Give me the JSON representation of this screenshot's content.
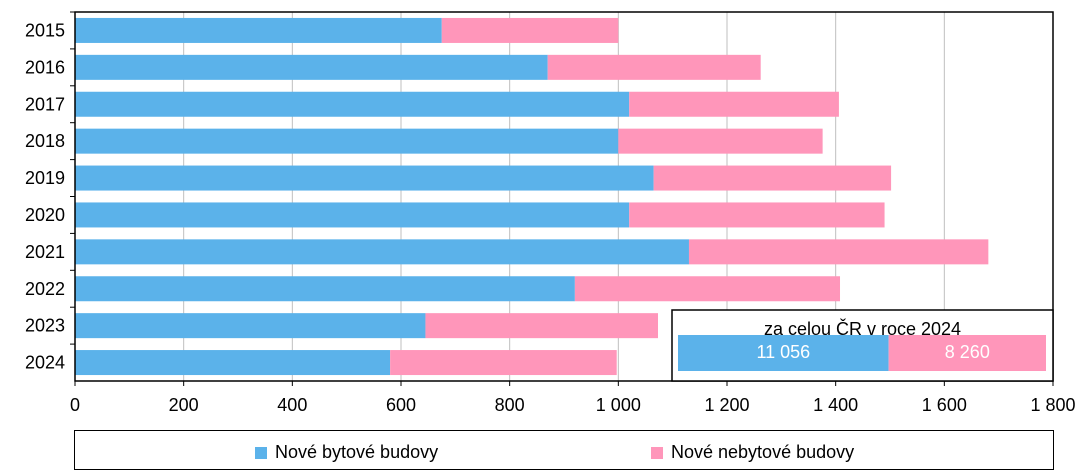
{
  "colors": {
    "bytove": "#5BB2EA",
    "nebytove": "#FF96BA",
    "grid": "#BFBFBF",
    "axis": "#000000"
  },
  "chart_data": {
    "type": "bar",
    "orientation": "horizontal",
    "stacked": true,
    "categories": [
      "2015",
      "2016",
      "2017",
      "2018",
      "2019",
      "2020",
      "2021",
      "2022",
      "2023",
      "2024"
    ],
    "series": [
      {
        "name": "Nové bytové budovy",
        "values": [
          675,
          870,
          1020,
          1000,
          1065,
          1020,
          1130,
          920,
          645,
          580
        ]
      },
      {
        "name": "Nové nebytové budovy",
        "values": [
          325,
          392,
          386,
          376,
          437,
          470,
          551,
          488,
          428,
          417
        ]
      }
    ],
    "xlim": [
      0,
      1800
    ],
    "xticks": [
      0,
      200,
      400,
      600,
      800,
      1000,
      1200,
      1400,
      1600,
      1800
    ],
    "xtick_labels": [
      "0",
      "200",
      "400",
      "600",
      "800",
      "1 000",
      "1 200",
      "1 400",
      "1 600",
      "1 800"
    ],
    "grid": "vertical",
    "legend_position": "bottom",
    "inset": {
      "title": "za celou ČR v roce 2024",
      "values": [
        11056,
        8260
      ],
      "labels": [
        "11 056",
        "8 260"
      ]
    }
  }
}
